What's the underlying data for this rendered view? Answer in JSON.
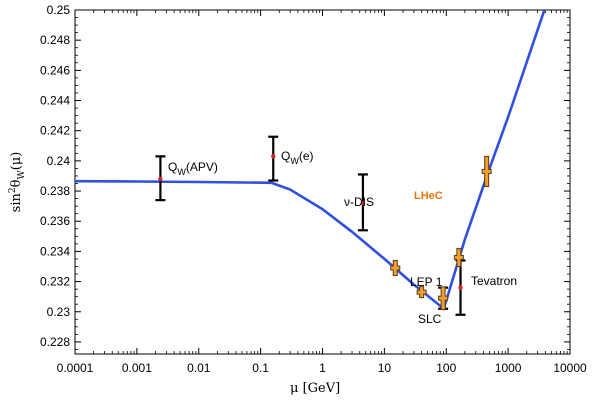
{
  "chart_data": {
    "type": "scatter",
    "x_scale": "log",
    "xlim": [
      0.0001,
      10000
    ],
    "ylim": [
      0.2272,
      0.25
    ],
    "xlabel": "μ [GeV]",
    "ylabel": "sin²θ_W(μ)",
    "x_tick_labels": [
      "0.0001",
      "0.001",
      "0.01",
      "0.1",
      "1",
      "10",
      "100",
      "1000",
      "10000"
    ],
    "x_tick_values": [
      0.0001,
      0.001,
      0.01,
      0.1,
      1,
      10,
      100,
      1000,
      10000
    ],
    "y_tick_labels": [
      "0.228",
      "0.23",
      "0.232",
      "0.234",
      "0.236",
      "0.238",
      "0.24",
      "0.242",
      "0.244",
      "0.246",
      "0.248",
      "0.25"
    ],
    "y_tick_values": [
      0.228,
      0.23,
      0.232,
      0.234,
      0.236,
      0.238,
      0.24,
      0.242,
      0.244,
      0.246,
      0.248,
      0.25
    ],
    "curve": {
      "color": "#2f4fe0",
      "x": [
        0.0001,
        0.001,
        0.01,
        0.15,
        0.3,
        1,
        3,
        10,
        30,
        91.2,
        200,
        500,
        1000,
        4000
      ],
      "y": [
        0.23865,
        0.23863,
        0.2386,
        0.23855,
        0.2381,
        0.2368,
        0.2353,
        0.2335,
        0.2318,
        0.2302,
        0.2348,
        0.2395,
        0.2429,
        0.2502
      ]
    },
    "measurements": [
      {
        "name": "Q_W(APV)",
        "x": 0.0024,
        "y": 0.2388,
        "err_low": 0.2374,
        "err_high": 0.2403,
        "color": "#000000"
      },
      {
        "name": "Q_W(e)",
        "x": 0.16,
        "y": 0.2403,
        "err_low": 0.2387,
        "err_high": 0.2416,
        "color": "#000000"
      },
      {
        "name": "ν-DIS",
        "x": 4.5,
        "y": 0.2372,
        "err_low": 0.2354,
        "err_high": 0.2391,
        "color": "#000000"
      },
      {
        "name": "SLC",
        "x": 89,
        "y": 0.23081,
        "err_low": 0.2302,
        "err_high": 0.2316,
        "color": "#000000"
      },
      {
        "name": "Tevatron",
        "x": 170,
        "y": 0.2316,
        "err_low": 0.2298,
        "err_high": 0.2334,
        "color": "#000000"
      }
    ],
    "projections": [
      {
        "name": "LEP 1",
        "x": 15,
        "y": 0.2329,
        "err_low": 0.2325,
        "err_high": 0.2333,
        "color": "#f0a030"
      },
      {
        "name": "",
        "x": 40,
        "y": 0.2313,
        "err_low": 0.2311,
        "err_high": 0.2315,
        "color": "#f0a030"
      },
      {
        "name": "",
        "x": 89,
        "y": 0.2309,
        "err_low": 0.2303,
        "err_high": 0.2316,
        "color": "#f0a030"
      },
      {
        "name": "",
        "x": 160,
        "y": 0.2336,
        "err_low": 0.2331,
        "err_high": 0.2341,
        "color": "#f0a030"
      },
      {
        "name": "LHeC",
        "x": 450,
        "y": 0.2393,
        "err_low": 0.2384,
        "err_high": 0.2402,
        "color": "#f0a030"
      }
    ],
    "labels": {
      "qw_apv": "Q",
      "qw_apv_sub": "W",
      "qw_apv_rest": "(APV)",
      "qw_e": "Q",
      "qw_e_sub": "W",
      "qw_e_rest": "(e)",
      "nu_dis": "ν-DIS",
      "lep1": "LEP 1",
      "slc": "SLC",
      "tevatron": "Tevatron",
      "lhec": "LHeC",
      "lhec_color": "#e87410"
    },
    "ylabel_parts": {
      "base": "sin",
      "sup": "2",
      "theta": "θ",
      "sub": "W",
      "arg": "(μ)"
    }
  }
}
